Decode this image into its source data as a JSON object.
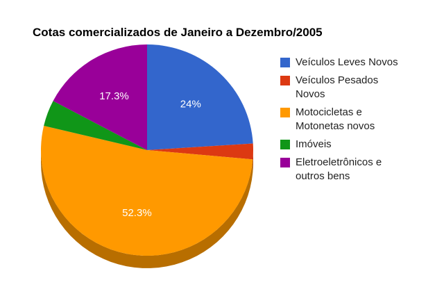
{
  "chart_data": {
    "type": "pie",
    "title": "Cotas comercializados de Janeiro a Dezembro/2005",
    "style": "3d",
    "legend_position": "right",
    "slices": [
      {
        "label": "Veículos Leves Novos",
        "value": 24.0,
        "value_label": "24%",
        "color": "#3366cc"
      },
      {
        "label": "Veículos Pesados Novos",
        "value": 2.4,
        "value_label": "",
        "color": "#dc3912"
      },
      {
        "label": "Motocicletas e Motonetas novos",
        "value": 52.3,
        "value_label": "52.3%",
        "color": "#ff9900"
      },
      {
        "label": "Imóveis",
        "value": 4.0,
        "value_label": "",
        "color": "#109618"
      },
      {
        "label": "Eletroeletrônicos e outros bens",
        "value": 17.3,
        "value_label": "17.3%",
        "color": "#990099"
      }
    ]
  }
}
